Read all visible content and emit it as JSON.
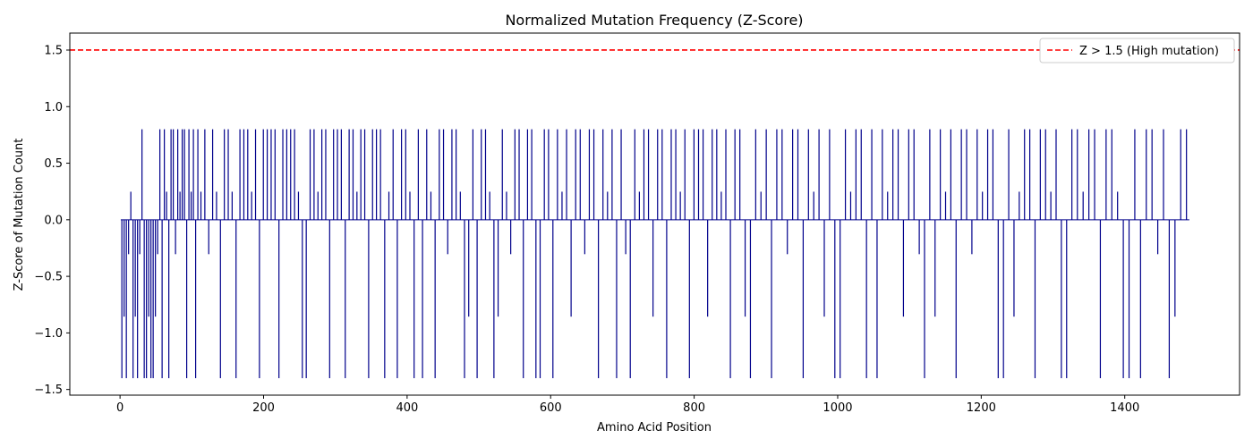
{
  "chart_data": {
    "type": "bar",
    "title": "Normalized Mutation Frequency (Z-Score)",
    "xlabel": "Amino Acid Position",
    "ylabel": "Z-Score of Mutation Count",
    "xlim": [
      -70,
      1560
    ],
    "ylim": [
      -1.55,
      1.65
    ],
    "xticks": [
      0,
      200,
      400,
      600,
      800,
      1000,
      1200,
      1400
    ],
    "yticks": [
      -1.5,
      -1.0,
      -0.5,
      0.0,
      0.5,
      1.0,
      1.5
    ],
    "xtick_labels": [
      "0",
      "200",
      "400",
      "600",
      "800",
      "1000",
      "1200",
      "1400"
    ],
    "ytick_labels": [
      "−1.5",
      "−1.0",
      "−0.5",
      "0.0",
      "0.5",
      "1.0",
      "1.5"
    ],
    "bar_color": "#00008B",
    "series": [
      {
        "value_levels": [
          -1.4,
          -0.856,
          -0.304,
          0.248,
          0.8
        ],
        "ranges": [
          {
            "start": 1,
            "end": 110,
            "values": [
              -1.4,
              -0.856,
              -1.4,
              -0.304,
              0.248,
              -1.4,
              -0.856,
              -1.4,
              -0.304,
              0.8,
              -1.4,
              -1.4,
              -0.856,
              -1.4,
              -1.4,
              -0.856,
              -0.304,
              0.8,
              -1.4,
              0.8,
              0.248,
              -1.4,
              0.8,
              0.8,
              -0.304,
              0.8,
              0.248,
              0.8,
              0.8,
              -1.4,
              0.8,
              0.248,
              0.8,
              -1.4,
              0.8
            ]
          },
          {
            "start": 110,
            "end": 360,
            "values": [
              0.248,
              0.8,
              -0.304,
              0.8,
              0.248,
              -1.4,
              0.8,
              0.8,
              0.248,
              -1.4,
              0.8,
              0.8,
              0.8,
              0.248,
              0.8,
              -1.4,
              0.8,
              0.8,
              0.8,
              0.8,
              -1.4,
              0.8,
              0.8,
              0.8,
              0.8,
              0.248,
              -1.4,
              -1.4,
              0.8,
              0.8,
              0.248,
              0.8,
              0.8,
              -1.4,
              0.8,
              0.8,
              0.8,
              -1.4,
              0.8,
              0.8,
              0.248,
              0.8,
              0.8,
              -1.4,
              0.8,
              0.8
            ]
          },
          {
            "start": 360,
            "end": 600,
            "values": [
              0.8,
              -1.4,
              0.248,
              0.8,
              -1.4,
              0.8,
              0.8,
              0.248,
              -1.4,
              0.8,
              -1.4,
              0.8,
              0.248,
              -1.4,
              0.8,
              0.8,
              -0.304,
              0.8,
              0.8,
              0.248,
              -1.4,
              -0.856,
              0.8,
              -1.4,
              0.8,
              0.8,
              0.248,
              -1.4,
              -0.856,
              0.8,
              0.248,
              -0.304,
              0.8,
              0.8,
              -1.4,
              0.8,
              0.8,
              -1.4,
              -1.4,
              0.8,
              0.8
            ]
          },
          {
            "start": 600,
            "end": 860,
            "values": [
              -1.4,
              0.8,
              0.248,
              0.8,
              -0.856,
              0.8,
              0.8,
              -0.304,
              0.8,
              0.8,
              -1.4,
              0.8,
              0.248,
              0.8,
              -1.4,
              0.8,
              -0.304,
              -1.4,
              0.8,
              0.248,
              0.8,
              0.8,
              -0.856,
              0.8,
              0.8,
              -1.4,
              0.8,
              0.8,
              0.248,
              0.8,
              -1.4,
              0.8,
              0.8,
              0.8,
              -0.856,
              0.8,
              0.8,
              0.248,
              0.8,
              -1.4,
              0.8
            ]
          },
          {
            "start": 860,
            "end": 1110,
            "values": [
              0.8,
              -0.856,
              -1.4,
              0.8,
              0.248,
              0.8,
              -1.4,
              0.8,
              0.8,
              -0.304,
              0.8,
              0.8,
              -1.4,
              0.8,
              0.248,
              0.8,
              -0.856,
              0.8,
              -1.4,
              -1.4,
              0.8,
              0.248,
              0.8,
              0.8,
              -1.4,
              0.8,
              -1.4,
              0.8,
              0.248,
              0.8,
              0.8,
              -0.856,
              0.8,
              0.8
            ]
          },
          {
            "start": 1110,
            "end": 1330,
            "values": [
              -0.304,
              -1.4,
              0.8,
              -0.856,
              0.8,
              0.248,
              0.8,
              -1.4,
              0.8,
              0.8,
              -0.304,
              0.8,
              0.248,
              0.8,
              0.8,
              -1.4,
              -1.4,
              0.8,
              -0.856,
              0.248,
              0.8,
              0.8,
              -1.4,
              0.8,
              0.8,
              0.248,
              0.8,
              -1.4,
              -1.4,
              0.8
            ]
          },
          {
            "start": 1330,
            "end": 1490,
            "values": [
              0.8,
              0.248,
              0.8,
              0.8,
              -1.4,
              0.8,
              0.8,
              0.248,
              -1.4,
              -1.4,
              0.8,
              -1.4,
              0.8,
              0.8,
              -0.304,
              0.8,
              -1.4,
              -0.856,
              0.8,
              0.8
            ]
          }
        ]
      }
    ],
    "reference_line": {
      "y": 1.5,
      "color": "#ff0000",
      "style": "dashed",
      "label": "Z > 1.5 (High mutation)"
    },
    "legend_position": "top-right",
    "grid": false
  }
}
